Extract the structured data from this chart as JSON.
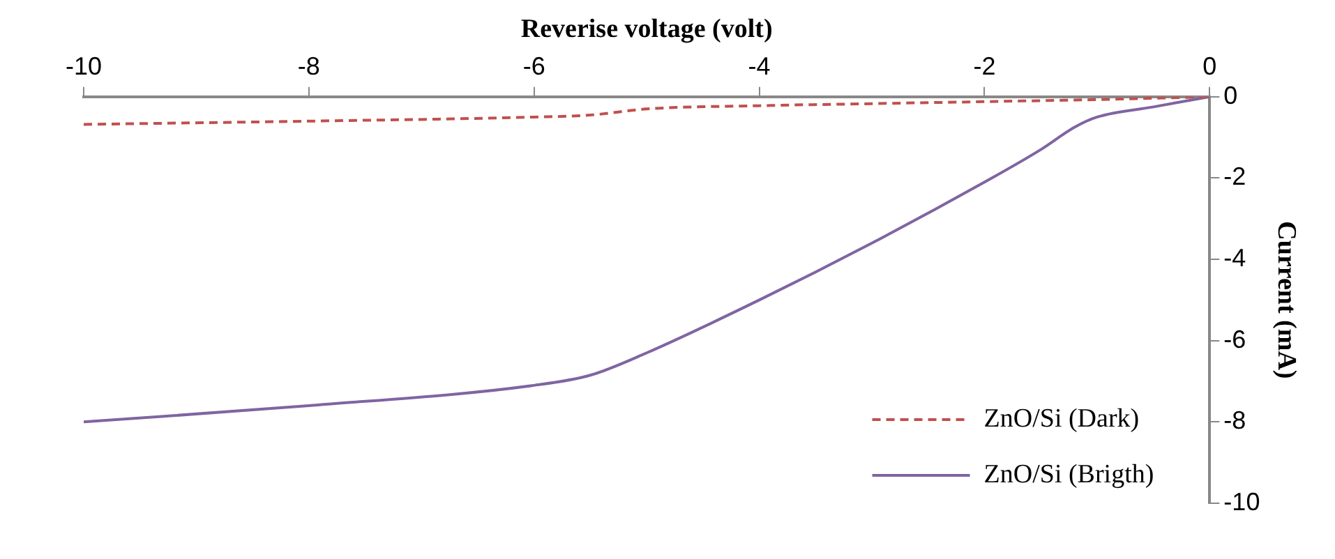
{
  "chart_data": {
    "type": "line",
    "xlabel": "Reverise voltage (volt)",
    "ylabel": "Current (mA)",
    "xlim": [
      -10,
      0
    ],
    "xticks": [
      -10,
      -8,
      -6,
      -4,
      -2,
      0
    ],
    "ylim": [
      -10,
      0
    ],
    "yticks": [
      -10,
      -8,
      -6,
      -4,
      -2,
      0
    ],
    "grid": false,
    "legend": "bottom right",
    "marker": "none",
    "series": [
      {
        "name": "ZnO/Si (Dark)",
        "color": "#c0504d",
        "line_style": "dashed",
        "x": [
          -10,
          -8,
          -6,
          -5.5,
          -5,
          -4,
          -3,
          -2,
          -1,
          0
        ],
        "values": [
          -0.68,
          -0.6,
          -0.5,
          -0.45,
          -0.3,
          -0.22,
          -0.17,
          -0.12,
          -0.07,
          0
        ]
      },
      {
        "name": "ZnO/Si (Brigth)",
        "color": "#8064a2",
        "line_style": "solid",
        "x": [
          -10,
          -8,
          -6,
          -5.5,
          -5,
          -4,
          -3,
          -2,
          -1.5,
          -1.2,
          -1,
          -0.5,
          0
        ],
        "values": [
          -8,
          -7.6,
          -7.1,
          -6.85,
          -6.3,
          -5,
          -3.6,
          -2.1,
          -1.3,
          -0.75,
          -0.5,
          -0.25,
          0
        ]
      }
    ]
  }
}
